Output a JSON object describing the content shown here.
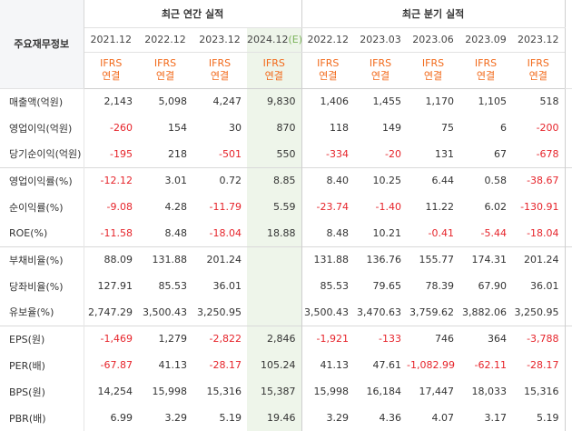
{
  "header": {
    "row_label": "주요재무정보",
    "annual_title": "최근 연간 실적",
    "quarter_title": "최근 분기 실적",
    "annual_periods": [
      "2021.12",
      "2022.12",
      "2023.12",
      "2024.12"
    ],
    "estimate_mark": "(E)",
    "quarter_periods": [
      "2022.12",
      "2023.03",
      "2023.06",
      "2023.09",
      "2023.12"
    ],
    "basis_line1": "IFRS",
    "basis_line2": "연결"
  },
  "rows": [
    {
      "label": "매출액(억원)",
      "annual": [
        "2,143",
        "5,098",
        "4,247",
        "9,830"
      ],
      "quarter": [
        "1,406",
        "1,455",
        "1,170",
        "1,105",
        "518"
      ]
    },
    {
      "label": "영업이익(억원)",
      "annual": [
        "-260",
        "154",
        "30",
        "870"
      ],
      "quarter": [
        "118",
        "149",
        "75",
        "6",
        "-200"
      ]
    },
    {
      "label": "당기순이익(억원)",
      "annual": [
        "-195",
        "218",
        "-501",
        "550"
      ],
      "quarter": [
        "-334",
        "-20",
        "131",
        "67",
        "-678"
      ]
    },
    {
      "label": "영업이익률(%)",
      "annual": [
        "-12.12",
        "3.01",
        "0.72",
        "8.85"
      ],
      "quarter": [
        "8.40",
        "10.25",
        "6.44",
        "0.58",
        "-38.67"
      ]
    },
    {
      "label": "순이익률(%)",
      "annual": [
        "-9.08",
        "4.28",
        "-11.79",
        "5.59"
      ],
      "quarter": [
        "-23.74",
        "-1.40",
        "11.22",
        "6.02",
        "-130.91"
      ]
    },
    {
      "label": "ROE(%)",
      "annual": [
        "-11.58",
        "8.48",
        "-18.04",
        "18.88"
      ],
      "quarter": [
        "8.48",
        "10.21",
        "-0.41",
        "-5.44",
        "-18.04"
      ]
    },
    {
      "label": "부채비율(%)",
      "annual": [
        "88.09",
        "131.88",
        "201.24",
        ""
      ],
      "quarter": [
        "131.88",
        "136.76",
        "155.77",
        "174.31",
        "201.24"
      ]
    },
    {
      "label": "당좌비율(%)",
      "annual": [
        "127.91",
        "85.53",
        "36.01",
        ""
      ],
      "quarter": [
        "85.53",
        "79.65",
        "78.39",
        "67.90",
        "36.01"
      ]
    },
    {
      "label": "유보율(%)",
      "annual": [
        "2,747.29",
        "3,500.43",
        "3,250.95",
        ""
      ],
      "quarter": [
        "3,500.43",
        "3,470.63",
        "3,759.62",
        "3,882.06",
        "3,250.95"
      ]
    },
    {
      "label": "EPS(원)",
      "annual": [
        "-1,469",
        "1,279",
        "-2,822",
        "2,846"
      ],
      "quarter": [
        "-1,921",
        "-133",
        "746",
        "364",
        "-3,788"
      ]
    },
    {
      "label": "PER(배)",
      "annual": [
        "-67.87",
        "41.13",
        "-28.17",
        "105.24"
      ],
      "quarter": [
        "41.13",
        "47.61",
        "-1,082.99",
        "-62.11",
        "-28.17"
      ]
    },
    {
      "label": "BPS(원)",
      "annual": [
        "14,254",
        "15,998",
        "15,316",
        "15,387"
      ],
      "quarter": [
        "15,998",
        "16,184",
        "17,447",
        "18,033",
        "15,316"
      ]
    },
    {
      "label": "PBR(배)",
      "annual": [
        "6.99",
        "3.29",
        "5.19",
        "19.46"
      ],
      "quarter": [
        "3.29",
        "4.36",
        "4.07",
        "3.17",
        "5.19"
      ]
    }
  ]
}
